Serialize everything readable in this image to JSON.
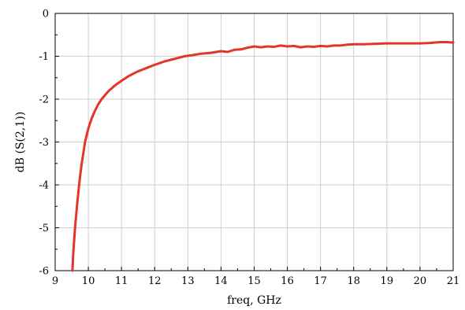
{
  "chart_data": {
    "type": "line",
    "title": "",
    "xlabel": "freq, GHz",
    "ylabel": "dB (S(2,1))",
    "xlim": [
      9,
      21
    ],
    "ylim": [
      -6,
      0
    ],
    "xticks": [
      9,
      10,
      11,
      12,
      13,
      14,
      15,
      16,
      17,
      18,
      19,
      20,
      21
    ],
    "yticks": [
      0,
      -1,
      -2,
      -3,
      -4,
      -5,
      -6
    ],
    "grid": true,
    "legend": "none",
    "series": [
      {
        "color": "#e5342a",
        "x": [
          9.52,
          9.55,
          9.6,
          9.65,
          9.7,
          9.75,
          9.8,
          9.9,
          10.0,
          10.1,
          10.2,
          10.3,
          10.4,
          10.5,
          10.6,
          10.8,
          11.0,
          11.2,
          11.5,
          11.8,
          12.0,
          12.3,
          12.6,
          12.9,
          13.1,
          13.4,
          13.7,
          14.0,
          14.2,
          14.4,
          14.6,
          14.8,
          15.0,
          15.2,
          15.4,
          15.6,
          15.8,
          16.0,
          16.2,
          16.4,
          16.6,
          16.8,
          17.0,
          17.2,
          17.4,
          17.6,
          17.8,
          18.0,
          18.3,
          18.6,
          19.0,
          19.3,
          19.6,
          20.0,
          20.3,
          20.6,
          20.8,
          21.0
        ],
        "y": [
          -6.0,
          -5.55,
          -5.0,
          -4.55,
          -4.15,
          -3.8,
          -3.5,
          -3.0,
          -2.68,
          -2.45,
          -2.27,
          -2.12,
          -2.0,
          -1.91,
          -1.82,
          -1.68,
          -1.57,
          -1.47,
          -1.35,
          -1.26,
          -1.2,
          -1.12,
          -1.06,
          -1.0,
          -0.98,
          -0.94,
          -0.92,
          -0.88,
          -0.9,
          -0.85,
          -0.84,
          -0.8,
          -0.77,
          -0.79,
          -0.77,
          -0.78,
          -0.75,
          -0.77,
          -0.76,
          -0.79,
          -0.77,
          -0.78,
          -0.76,
          -0.77,
          -0.75,
          -0.75,
          -0.73,
          -0.72,
          -0.72,
          -0.71,
          -0.7,
          -0.7,
          -0.7,
          -0.7,
          -0.69,
          -0.67,
          -0.67,
          -0.68
        ]
      }
    ]
  }
}
